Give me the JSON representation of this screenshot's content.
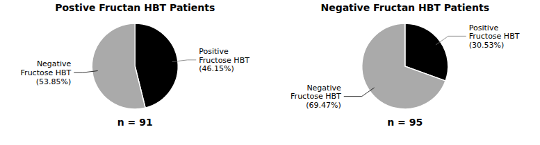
{
  "chart_data": [
    {
      "type": "pie",
      "title": "Postive Fructan HBT Patients",
      "values": [
        46.15,
        53.85
      ],
      "colors": [
        "#000000",
        "#aaaaaa"
      ],
      "data_labels": true,
      "value_labels": [
        "Positive\nFructose HBT\n(46.15%)",
        "Negative\nFructose HBT\n(53.85%)"
      ],
      "annotations": [
        "n = 91"
      ]
    },
    {
      "type": "pie",
      "title": "Negative Fructan HBT Patients",
      "values": [
        30.53,
        69.47
      ],
      "colors": [
        "#000000",
        "#aaaaaa"
      ],
      "data_labels": true,
      "value_labels": [
        "Positive\nFructose HBT\n(30.53%)",
        "Negative\nFructose HBT\n(69.47%)"
      ],
      "annotations": [
        "n = 95"
      ]
    }
  ]
}
